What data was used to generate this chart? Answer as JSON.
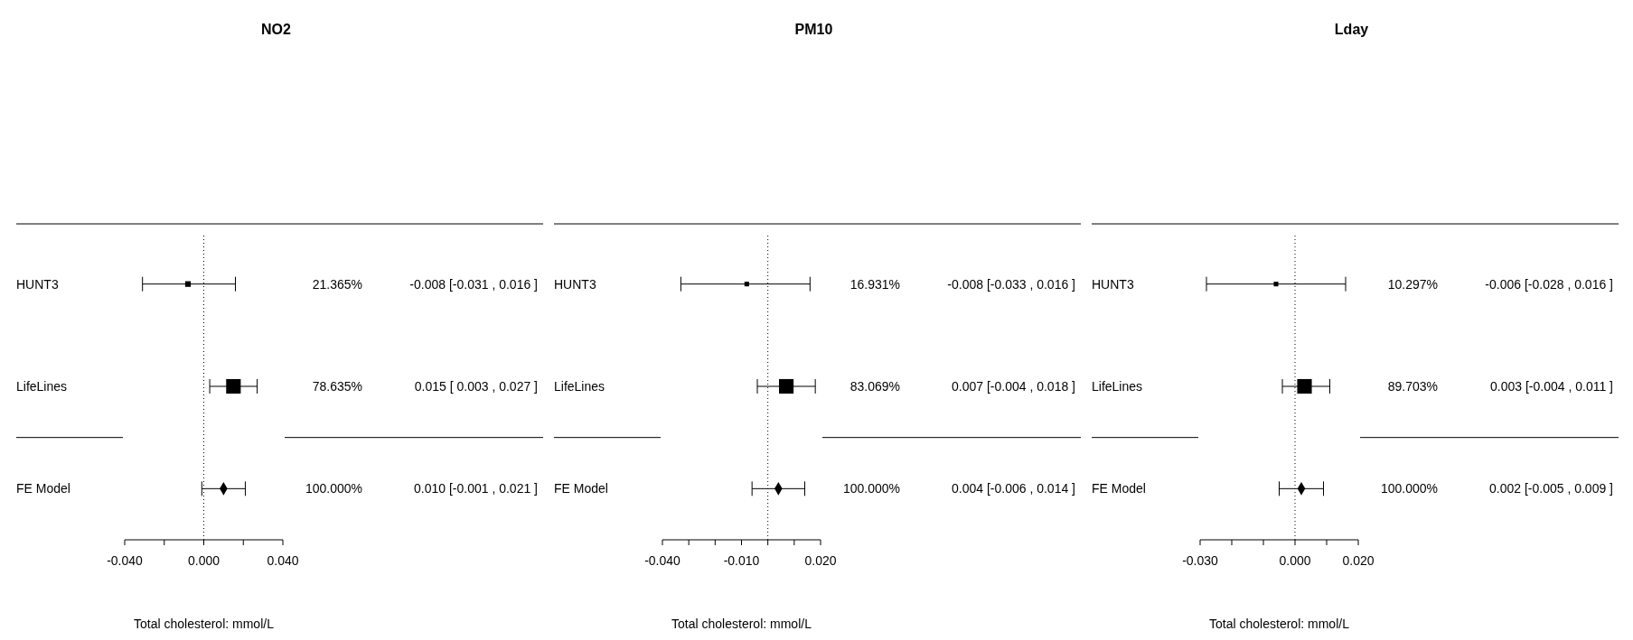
{
  "chart_data": [
    {
      "type": "scatter",
      "orientation": "horizontal",
      "title": "NO2",
      "xlabel": "Total cholesterol: mmol/L",
      "categories": [
        "HUNT3",
        "LifeLines",
        "FE Model"
      ],
      "xlim": [
        -0.04,
        0.04
      ],
      "xticks": [
        {
          "value": -0.04,
          "label": "-0.040"
        },
        {
          "value": -0.02,
          "label": null
        },
        {
          "value": 0,
          "label": "0.000"
        },
        {
          "value": 0.02,
          "label": null
        },
        {
          "value": 0.04,
          "label": "0.040"
        }
      ],
      "series": [
        {
          "type": "scatter",
          "marker": "square",
          "color": "#000000",
          "values": [
            -0.008,
            0.015,
            null
          ],
          "errors": [
            [
              -0.031,
              0.016
            ],
            [
              0.003,
              0.027
            ],
            null
          ],
          "sizes": [
            0.15,
            1,
            null
          ]
        },
        {
          "type": "scatter",
          "marker": "diamond",
          "color": "#000000",
          "values": [
            null,
            null,
            0.01
          ],
          "errors": [
            null,
            null,
            [
              -0.001,
              0.021
            ]
          ]
        }
      ],
      "annotations": [
        "21.365%",
        "-0.008 [-0.031 , 0.016 ]",
        "78.635%",
        "0.015 [ 0.003 , 0.027 ]",
        "100.000%",
        "0.010 [-0.001 , 0.021 ]"
      ],
      "ref_lines": [
        {
          "axis": "x",
          "value": 0,
          "line_style": "dotted",
          "color": "#000000"
        }
      ]
    },
    {
      "type": "scatter",
      "orientation": "horizontal",
      "title": "PM10",
      "xlabel": "Total cholesterol: mmol/L",
      "categories": [
        "HUNT3",
        "LifeLines",
        "FE Model"
      ],
      "xlim": [
        -0.04,
        0.02
      ],
      "xticks": [
        {
          "value": -0.04,
          "label": "-0.040"
        },
        {
          "value": -0.03,
          "label": null
        },
        {
          "value": -0.02,
          "label": null
        },
        {
          "value": -0.01,
          "label": "-0.010"
        },
        {
          "value": 0,
          "label": null
        },
        {
          "value": 0.01,
          "label": null
        },
        {
          "value": 0.02,
          "label": "0.020"
        }
      ],
      "series": [
        {
          "type": "scatter",
          "marker": "square",
          "color": "#000000",
          "values": [
            -0.008,
            0.007,
            null
          ],
          "errors": [
            [
              -0.033,
              0.016
            ],
            [
              -0.004,
              0.018
            ],
            null
          ],
          "sizes": [
            0.1,
            1,
            null
          ]
        },
        {
          "type": "scatter",
          "marker": "diamond",
          "color": "#000000",
          "values": [
            null,
            null,
            0.004
          ],
          "errors": [
            null,
            null,
            [
              -0.006,
              0.014
            ]
          ]
        }
      ],
      "annotations": [
        "16.931%",
        "-0.008 [-0.033 , 0.016 ]",
        "83.069%",
        "0.007 [-0.004 , 0.018 ]",
        "100.000%",
        "0.004 [-0.006 , 0.014 ]"
      ],
      "ref_lines": [
        {
          "axis": "x",
          "value": 0,
          "line_style": "dotted",
          "color": "#000000"
        }
      ]
    },
    {
      "type": "scatter",
      "orientation": "horizontal",
      "title": "Lday",
      "xlabel": "Total cholesterol: mmol/L",
      "categories": [
        "HUNT3",
        "LifeLines",
        "FE Model"
      ],
      "xlim": [
        -0.03,
        0.02
      ],
      "xticks": [
        {
          "value": -0.03,
          "label": "-0.030"
        },
        {
          "value": -0.02,
          "label": null
        },
        {
          "value": -0.01,
          "label": null
        },
        {
          "value": 0,
          "label": "0.000"
        },
        {
          "value": 0.01,
          "label": null
        },
        {
          "value": 0.02,
          "label": "0.020"
        }
      ],
      "series": [
        {
          "type": "scatter",
          "marker": "square",
          "color": "#000000",
          "values": [
            -0.006,
            0.003,
            null
          ],
          "errors": [
            [
              -0.028,
              0.016
            ],
            [
              -0.004,
              0.011
            ],
            null
          ],
          "sizes": [
            0.1,
            1,
            null
          ]
        },
        {
          "type": "scatter",
          "marker": "diamond",
          "color": "#000000",
          "values": [
            null,
            null,
            0.002
          ],
          "errors": [
            null,
            null,
            [
              -0.005,
              0.009
            ]
          ]
        }
      ],
      "annotations": [
        "10.297%",
        "-0.006 [-0.028 , 0.016 ]",
        "89.703%",
        "0.003 [-0.004 , 0.011 ]",
        "100.000%",
        "0.002 [-0.005 , 0.009 ]"
      ],
      "ref_lines": [
        {
          "axis": "x",
          "value": 0,
          "line_style": "dotted",
          "color": "#000000"
        }
      ]
    }
  ]
}
